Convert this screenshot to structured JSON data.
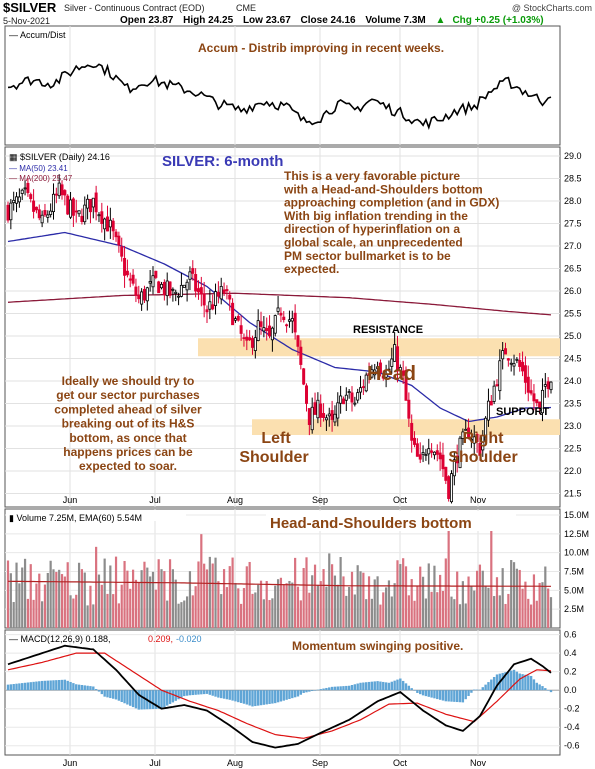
{
  "header": {
    "symbol": "$SILVER",
    "name": "Silver - Continuous Contract (EOD)",
    "exchange": "CME",
    "watermark": "@ StockCharts.com",
    "date": "5-Nov-2021",
    "open_label": "Open 23.87",
    "high_label": "High 24.25",
    "low_label": "Low 23.67",
    "close_label": "Close 24.16",
    "volume_label": "Volume 7.3M",
    "chg_label": "Chg +0.25 (+1.03%)",
    "chg_color": "#0a9b0a",
    "chg_icon": "up-triangle-icon"
  },
  "colors": {
    "up_candle": "#000000",
    "down_candle": "#dd0033",
    "ma50": "#2b2ba8",
    "ma200": "#8b1a3a",
    "zone": "#fbe0b0",
    "annotation": "#8b4513",
    "title_blue": "#3a3ab5",
    "vol_up": "#8c8c8c",
    "vol_down": "#d9727f",
    "histogram": "#5fa5d6"
  },
  "chart_data": [
    {
      "type": "line",
      "panel": "accum-dist",
      "legend": "Accum/Dist",
      "annotation": "Accum - Distrib improving in recent weeks.",
      "y_axis_labels": "none"
    },
    {
      "type": "candlestick",
      "panel": "price",
      "title": "SILVER: 6-month",
      "legend_price": "$SILVER (Daily) 24.16",
      "legend_ma50": "MA(50) 23.41",
      "legend_ma200": "MA(200) 25.47",
      "ylim": [
        21.2,
        29.2
      ],
      "y_ticks": [
        21.5,
        22,
        22.5,
        23,
        23.5,
        24,
        24.5,
        25,
        25.5,
        26,
        26.5,
        27,
        27.5,
        28,
        28.5,
        29
      ],
      "x_ticks": [
        "Jun",
        "Jul",
        "Aug",
        "Sep",
        "Oct",
        "Nov"
      ],
      "close_path": [
        [
          0,
          27.8
        ],
        [
          6,
          28.1
        ],
        [
          12,
          27.5
        ],
        [
          18,
          28.2
        ],
        [
          24,
          27.6
        ],
        [
          30,
          28.0
        ],
        [
          36,
          27.4
        ],
        [
          42,
          26.3
        ],
        [
          46,
          25.8
        ],
        [
          52,
          26.2
        ],
        [
          58,
          25.9
        ],
        [
          64,
          26.3
        ],
        [
          70,
          25.6
        ],
        [
          76,
          26.0
        ],
        [
          80,
          25.3
        ],
        [
          84,
          24.7
        ],
        [
          88,
          25.2
        ],
        [
          92,
          24.9
        ],
        [
          96,
          25.6
        ],
        [
          100,
          25.3
        ],
        [
          103,
          24.3
        ],
        [
          106,
          23.2
        ],
        [
          110,
          23.4
        ],
        [
          114,
          23.0
        ],
        [
          118,
          23.7
        ],
        [
          122,
          23.5
        ],
        [
          126,
          24.1
        ],
        [
          130,
          24.5
        ],
        [
          133,
          24.1
        ],
        [
          136,
          24.6
        ],
        [
          139,
          24.0
        ],
        [
          142,
          22.6
        ],
        [
          145,
          22.1
        ],
        [
          148,
          22.7
        ],
        [
          152,
          22.3
        ],
        [
          155,
          21.6
        ],
        [
          158,
          22.4
        ],
        [
          162,
          22.9
        ],
        [
          166,
          22.5
        ],
        [
          169,
          23.4
        ],
        [
          172,
          24.1
        ],
        [
          175,
          24.7
        ],
        [
          178,
          24.5
        ],
        [
          181,
          24.2
        ],
        [
          184,
          23.7
        ],
        [
          187,
          23.3
        ],
        [
          189,
          23.9
        ],
        [
          191,
          24.16
        ]
      ],
      "ma50_path": [
        [
          0,
          27.1
        ],
        [
          20,
          27.3
        ],
        [
          40,
          27.0
        ],
        [
          55,
          26.6
        ],
        [
          70,
          26.1
        ],
        [
          85,
          25.3
        ],
        [
          100,
          24.7
        ],
        [
          115,
          24.3
        ],
        [
          130,
          24.2
        ],
        [
          142,
          23.9
        ],
        [
          152,
          23.4
        ],
        [
          162,
          23.1
        ],
        [
          172,
          23.2
        ],
        [
          182,
          23.4
        ],
        [
          191,
          23.41
        ]
      ],
      "ma200_path": [
        [
          0,
          25.75
        ],
        [
          40,
          25.9
        ],
        [
          80,
          25.95
        ],
        [
          120,
          25.85
        ],
        [
          150,
          25.7
        ],
        [
          175,
          25.55
        ],
        [
          191,
          25.47
        ]
      ],
      "zones": [
        {
          "label": "RESISTANCE",
          "from": 24.55,
          "to": 24.95
        },
        {
          "label": "SUPPORT",
          "from": 22.8,
          "to": 23.15
        }
      ],
      "labels": {
        "head": "Head",
        "left_shoulder_1": "Left",
        "left_shoulder_2": "Shoulder",
        "right_shoulder_1": "Right",
        "right_shoulder_2": "Shoulder"
      },
      "commentary_right": [
        "This is a very favorable picture",
        "with a Head-and-Shoulders bottom",
        "approaching completion (and in GDX)",
        "With big inflation trending in the",
        "direction of hyperinflation on a",
        "global scale, an unprecedented",
        "PM sector bullmarket is to be",
        "expected."
      ],
      "commentary_left": [
        "Ideally we should try to",
        "get our sector purchases",
        "completed ahead of silver",
        "breaking out of its H&S",
        "bottom, as once that",
        "happens prices can be",
        "expected to soar."
      ]
    },
    {
      "type": "bar",
      "panel": "volume",
      "legend": "Volume 7.25M, EMA(60) 5.54M",
      "annotation": "Head-and-Shoulders bottom",
      "y_ticks": [
        "15.0M",
        "12.5M",
        "10.0M",
        "7.5M",
        "5.0M",
        "2.5M"
      ],
      "y_tick_values": [
        15.0,
        12.5,
        10.0,
        7.5,
        5.0,
        2.5
      ],
      "ylim": [
        0,
        15.8
      ],
      "ema_path": [
        [
          0,
          6.2
        ],
        [
          60,
          6.0
        ],
        [
          120,
          5.6
        ],
        [
          191,
          5.54
        ]
      ]
    },
    {
      "type": "line",
      "panel": "macd",
      "legend_a": "MACD(12,26,9) 0.188,",
      "legend_b": "0.209,",
      "legend_c": "-0.020",
      "annotation": "Momentum swinging positive.",
      "ylim": [
        -0.7,
        0.65
      ],
      "y_ticks": [
        0.6,
        0.4,
        0.2,
        0.0,
        -0.2,
        -0.4,
        -0.6
      ],
      "y_tick_labels": [
        "0.6",
        "0.4",
        "0.2",
        "0.0",
        "-0.2",
        "-0.4",
        "-0.6"
      ],
      "macd_path": [
        [
          0,
          0.28
        ],
        [
          10,
          0.38
        ],
        [
          20,
          0.48
        ],
        [
          30,
          0.44
        ],
        [
          38,
          0.22
        ],
        [
          46,
          -0.05
        ],
        [
          54,
          -0.2
        ],
        [
          62,
          -0.16
        ],
        [
          70,
          -0.22
        ],
        [
          78,
          -0.38
        ],
        [
          86,
          -0.56
        ],
        [
          94,
          -0.62
        ],
        [
          102,
          -0.58
        ],
        [
          110,
          -0.46
        ],
        [
          120,
          -0.32
        ],
        [
          130,
          -0.12
        ],
        [
          138,
          -0.02
        ],
        [
          146,
          -0.22
        ],
        [
          154,
          -0.38
        ],
        [
          160,
          -0.44
        ],
        [
          166,
          -0.28
        ],
        [
          172,
          0.05
        ],
        [
          178,
          0.28
        ],
        [
          184,
          0.34
        ],
        [
          188,
          0.26
        ],
        [
          191,
          0.188
        ]
      ],
      "signal_path": [
        [
          0,
          0.22
        ],
        [
          12,
          0.3
        ],
        [
          24,
          0.4
        ],
        [
          34,
          0.4
        ],
        [
          44,
          0.2
        ],
        [
          54,
          0.0
        ],
        [
          64,
          -0.12
        ],
        [
          74,
          -0.22
        ],
        [
          84,
          -0.36
        ],
        [
          94,
          -0.48
        ],
        [
          104,
          -0.52
        ],
        [
          114,
          -0.44
        ],
        [
          124,
          -0.32
        ],
        [
          134,
          -0.15
        ],
        [
          144,
          -0.14
        ],
        [
          154,
          -0.26
        ],
        [
          164,
          -0.34
        ],
        [
          172,
          -0.12
        ],
        [
          180,
          0.12
        ],
        [
          186,
          0.22
        ],
        [
          191,
          0.209
        ]
      ],
      "histogram_final": -0.02
    }
  ]
}
